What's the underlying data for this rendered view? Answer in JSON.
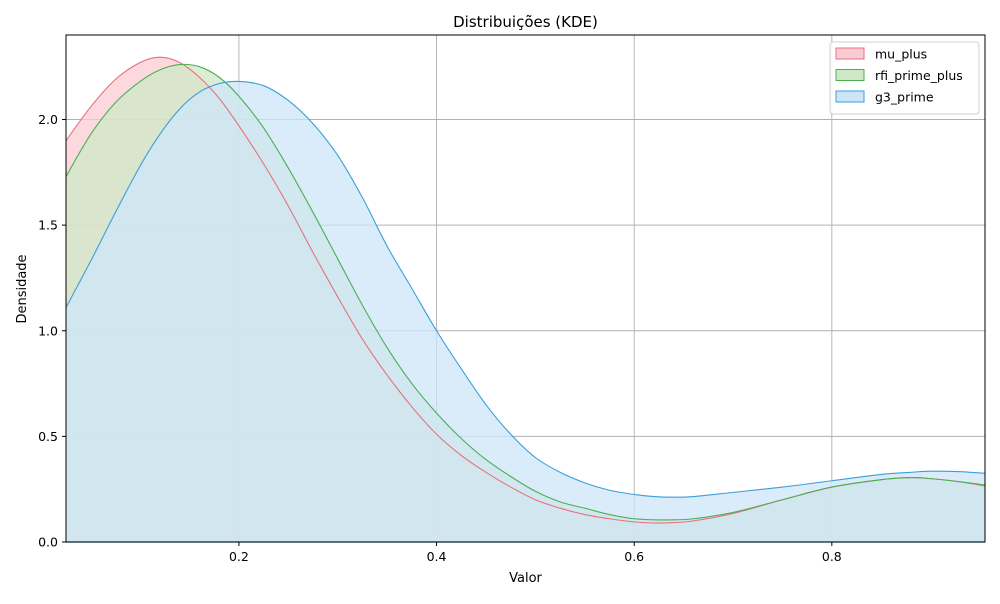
{
  "chart_data": {
    "type": "area",
    "title": "Distribuições (KDE)",
    "xlabel": "Valor",
    "ylabel": "Densidade",
    "xlim": [
      0.025,
      0.955
    ],
    "ylim": [
      0,
      2.4
    ],
    "x_ticks": [
      0.2,
      0.4,
      0.6,
      0.8
    ],
    "x_tick_labels": [
      "0.2",
      "0.4",
      "0.6",
      "0.8"
    ],
    "y_ticks": [
      0.0,
      0.5,
      1.0,
      1.5,
      2.0
    ],
    "y_tick_labels": [
      "0.0",
      "0.5",
      "1.0",
      "1.5",
      "2.0"
    ],
    "grid": true,
    "legend_position": "top-right",
    "x": [
      0.025,
      0.05,
      0.075,
      0.1,
      0.12,
      0.14,
      0.16,
      0.18,
      0.2,
      0.225,
      0.25,
      0.275,
      0.3,
      0.325,
      0.35,
      0.375,
      0.4,
      0.425,
      0.45,
      0.475,
      0.5,
      0.525,
      0.55,
      0.575,
      0.6,
      0.62,
      0.64,
      0.66,
      0.7,
      0.75,
      0.8,
      0.85,
      0.88,
      0.9,
      0.93,
      0.955
    ],
    "series": [
      {
        "name": "mu_plus",
        "color": "#e8707f",
        "fill": "#f9ccd4",
        "values": [
          1.9,
          2.06,
          2.19,
          2.27,
          2.295,
          2.27,
          2.2,
          2.1,
          1.97,
          1.79,
          1.59,
          1.37,
          1.16,
          0.96,
          0.79,
          0.64,
          0.51,
          0.41,
          0.33,
          0.26,
          0.2,
          0.16,
          0.13,
          0.11,
          0.095,
          0.09,
          0.092,
          0.1,
          0.135,
          0.2,
          0.26,
          0.295,
          0.305,
          0.3,
          0.285,
          0.265
        ]
      },
      {
        "name": "rfi_prime_plus",
        "color": "#4caf50",
        "fill": "#cfe8c7",
        "values": [
          1.73,
          1.93,
          2.08,
          2.18,
          2.235,
          2.26,
          2.25,
          2.2,
          2.11,
          1.96,
          1.77,
          1.56,
          1.34,
          1.12,
          0.92,
          0.75,
          0.61,
          0.49,
          0.39,
          0.31,
          0.24,
          0.19,
          0.16,
          0.13,
          0.11,
          0.105,
          0.105,
          0.11,
          0.14,
          0.2,
          0.26,
          0.295,
          0.305,
          0.3,
          0.285,
          0.27
        ]
      },
      {
        "name": "g3_prime",
        "color": "#3a9fd9",
        "fill": "#cde5f8",
        "values": [
          1.11,
          1.33,
          1.56,
          1.78,
          1.93,
          2.05,
          2.13,
          2.17,
          2.18,
          2.16,
          2.09,
          1.98,
          1.83,
          1.63,
          1.4,
          1.2,
          1.0,
          0.82,
          0.65,
          0.51,
          0.4,
          0.33,
          0.28,
          0.245,
          0.225,
          0.215,
          0.212,
          0.215,
          0.235,
          0.26,
          0.29,
          0.32,
          0.33,
          0.335,
          0.333,
          0.325
        ]
      }
    ]
  }
}
